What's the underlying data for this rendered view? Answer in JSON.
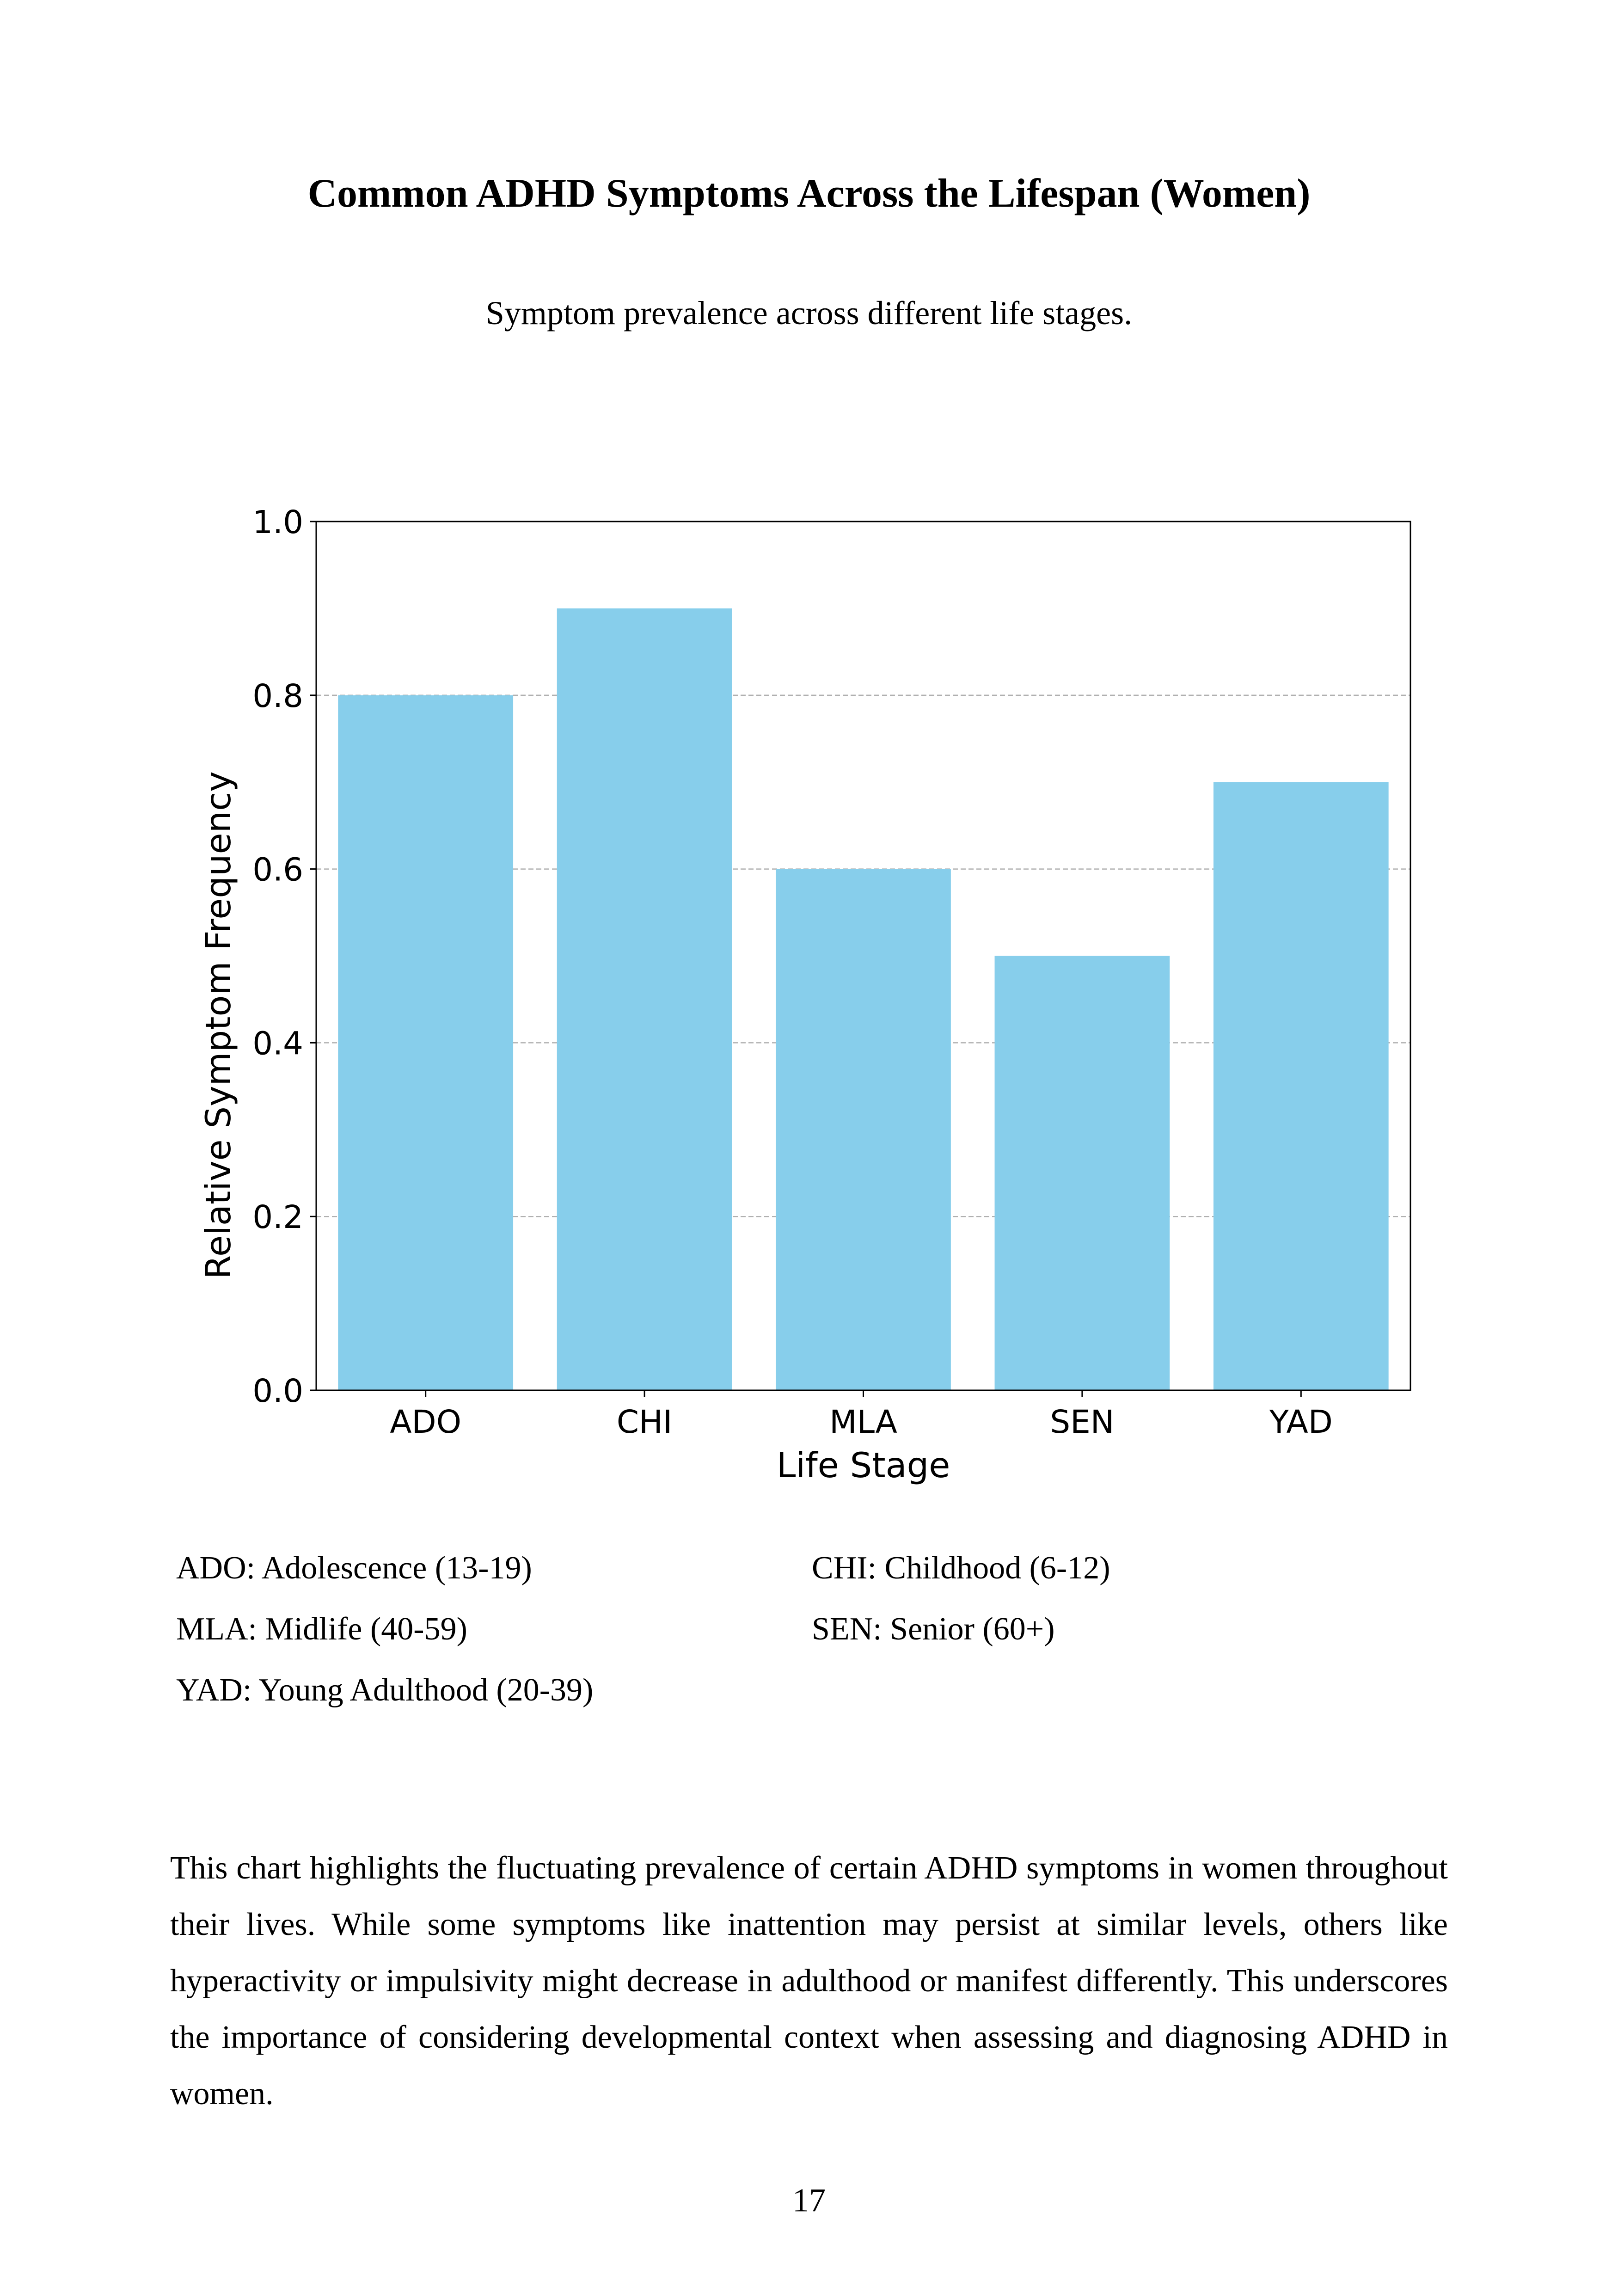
{
  "document": {
    "title": "Common ADHD Symptoms Across the Lifespan (Women)",
    "subtitle": "Symptom prevalence across different life stages.",
    "legend": [
      "ADO: Adolescence (13-19)",
      "CHI: Childhood (6-12)",
      "MLA: Midlife (40-59)",
      "SEN: Senior (60+)",
      "YAD: Young Adulthood (20-39)"
    ],
    "body_text": "This chart highlights the fluctuating prevalence of certain ADHD symptoms in women throughout their lives. While some symptoms like inattention may persist at similar levels, others like hyperactivity or impulsivity might decrease in adulthood or manifest differently. This underscores the importance of considering developmental context when assessing and diagnosing ADHD in women.",
    "page_number": "17"
  },
  "chart_data": {
    "type": "bar",
    "categories": [
      "ADO",
      "CHI",
      "MLA",
      "SEN",
      "YAD"
    ],
    "values": [
      0.8,
      0.9,
      0.6,
      0.5,
      0.7
    ],
    "xlabel": "Life Stage",
    "ylabel": "Relative Symptom Frequency",
    "ylim": [
      0,
      1.0
    ],
    "yticks": [
      0.0,
      0.2,
      0.4,
      0.6,
      0.8,
      1.0
    ],
    "ytick_labels": [
      "0.0",
      "0.2",
      "0.4",
      "0.6",
      "0.8",
      "1.0"
    ],
    "grid": "y-dashed",
    "bar_color": "#87ceeb"
  }
}
